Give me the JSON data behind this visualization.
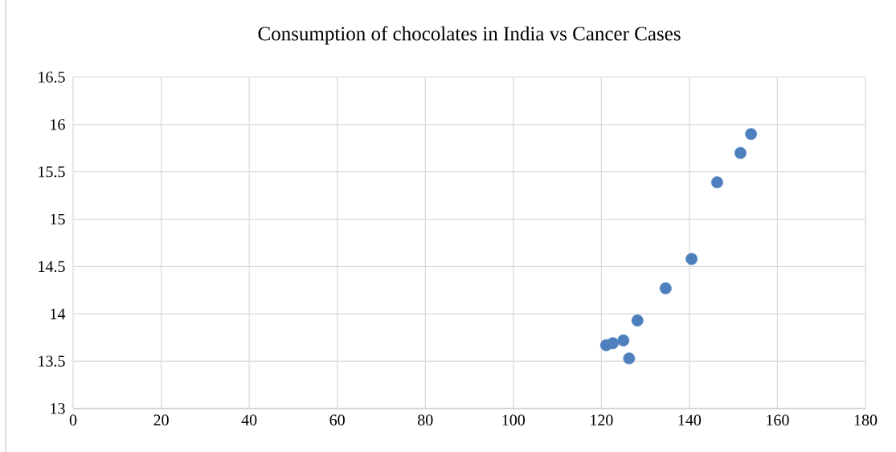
{
  "chart_data": {
    "type": "scatter",
    "title": "Consumption of chocolates in India vs Cancer Cases",
    "series": [
      {
        "color": "#4e80bd",
        "x": [
          121.1,
          122.6,
          125.0,
          126.3,
          128.2,
          134.6,
          140.5,
          146.3,
          151.6,
          154.0
        ],
        "values": [
          13.67,
          13.69,
          13.72,
          13.53,
          13.93,
          14.27,
          14.58,
          15.39,
          15.7,
          15.9
        ]
      }
    ],
    "xlim": [
      0,
      180
    ],
    "ylim": [
      13,
      16.5
    ],
    "xticks": [
      0,
      20,
      40,
      60,
      80,
      100,
      120,
      140,
      160,
      180
    ],
    "yticks": [
      13,
      {
        "value": 13.5,
        "label": "13.5"
      },
      14,
      {
        "value": 14.5,
        "label": "14.5"
      },
      15,
      {
        "value": 15.5,
        "label": "15.5"
      },
      16,
      {
        "value": 16.5,
        "label": "16.5"
      }
    ],
    "grid": true,
    "marker": "circle"
  }
}
